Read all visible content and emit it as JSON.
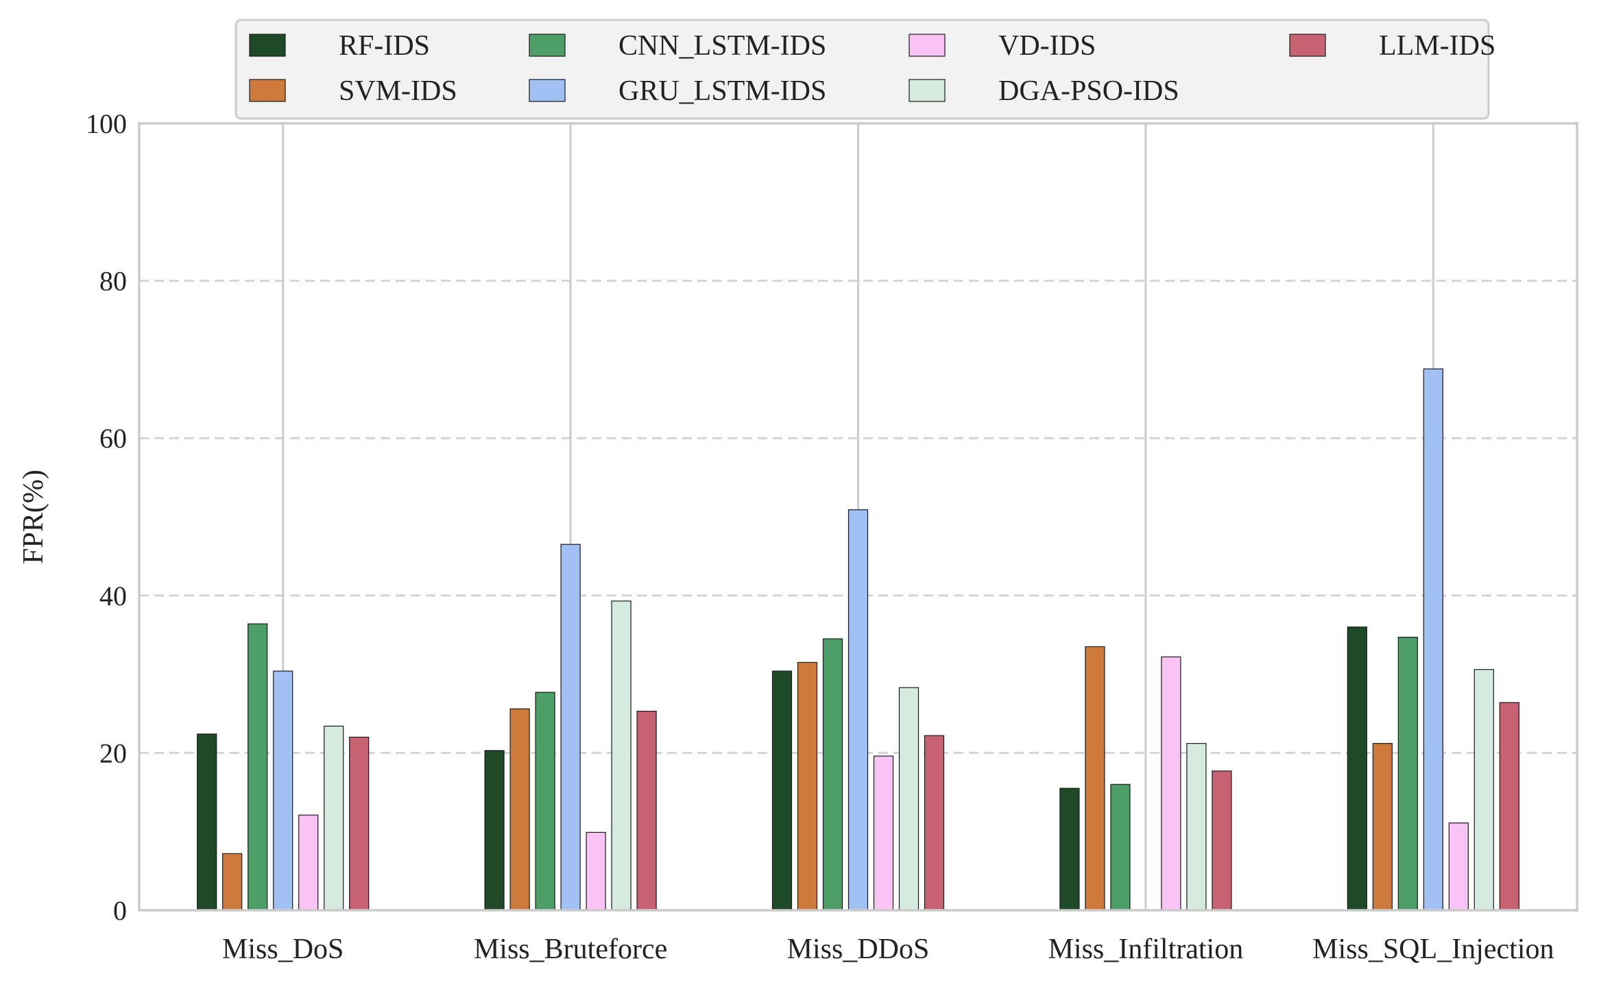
{
  "chart_data": {
    "type": "bar",
    "title": "",
    "xlabel": "",
    "ylabel": "FPR(%)",
    "ylim": [
      0,
      100
    ],
    "yticks": [
      0,
      20,
      40,
      60,
      80,
      100
    ],
    "grid": "horizontal dashed",
    "legend_position": "top-center",
    "categories": [
      "Miss_DoS",
      "Miss_Bruteforce",
      "Miss_DDoS",
      "Miss_Infiltration",
      "Miss_SQL_Injection"
    ],
    "series": [
      {
        "name": "RF-IDS",
        "color": "#1f4a28",
        "values": [
          22.4,
          20.3,
          30.4,
          15.5,
          36.0
        ]
      },
      {
        "name": "SVM-IDS",
        "color": "#cd7a3c",
        "values": [
          7.2,
          25.6,
          31.5,
          33.5,
          21.2
        ]
      },
      {
        "name": "CNN_LSTM-IDS",
        "color": "#4e9e68",
        "values": [
          36.4,
          27.7,
          34.5,
          16.0,
          34.7
        ]
      },
      {
        "name": "GRU_LSTM-IDS",
        "color": "#a1c1f5",
        "values": [
          30.4,
          46.5,
          50.9,
          0,
          68.8
        ]
      },
      {
        "name": "VD-IDS",
        "color": "#f9c3f5",
        "values": [
          12.1,
          9.9,
          19.6,
          32.2,
          11.1
        ]
      },
      {
        "name": "DGA-PSO-IDS",
        "color": "#d6ebe0",
        "values": [
          23.4,
          39.3,
          28.3,
          21.2,
          30.6
        ]
      },
      {
        "name": "LLM-IDS",
        "color": "#c76273",
        "values": [
          22.0,
          25.3,
          22.2,
          17.7,
          26.4
        ]
      }
    ]
  }
}
